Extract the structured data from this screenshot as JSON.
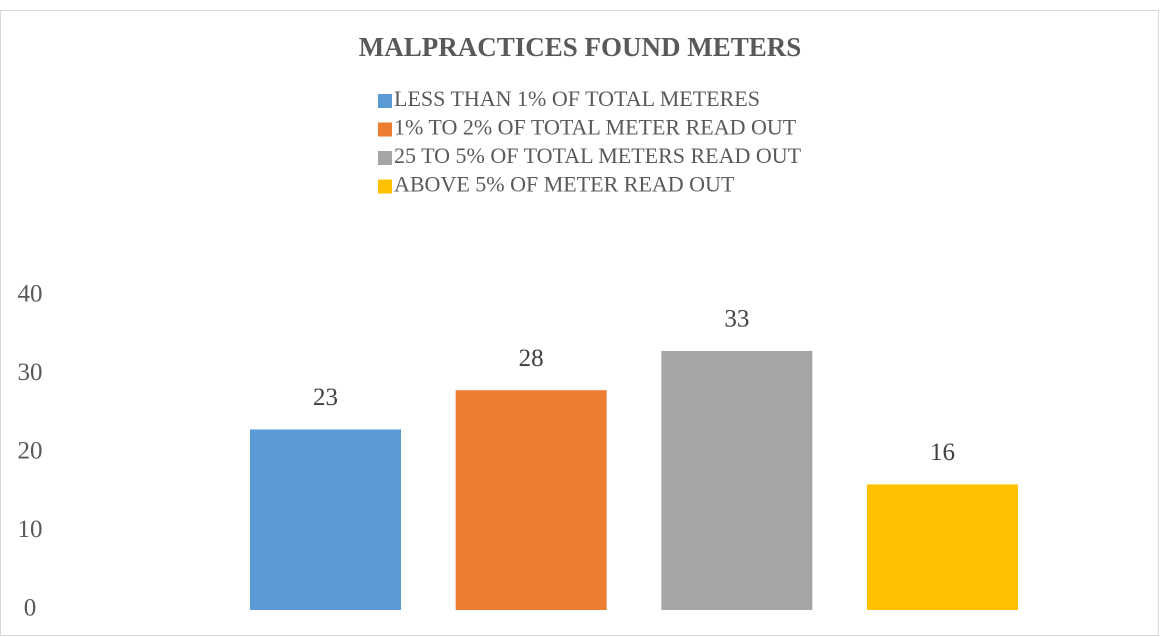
{
  "chart_data": {
    "type": "bar",
    "title": "MALPRACTICES FOUND METERS",
    "categories": [
      null
    ],
    "series": [
      {
        "name": "LESS THAN 1% OF TOTAL METERES",
        "color": "#5b9bd5",
        "values": [
          23
        ]
      },
      {
        "name": "1% TO 2% OF TOTAL METER READ OUT",
        "color": "#ed7d31",
        "values": [
          28
        ]
      },
      {
        "name": "25 TO 5% OF TOTAL METERS READ OUT",
        "color": "#a5a5a5",
        "values": [
          33
        ]
      },
      {
        "name": "ABOVE 5% OF METER READ OUT",
        "color": "#ffc000",
        "values": [
          16
        ]
      }
    ],
    "ylim": [
      0,
      40
    ],
    "yticks": [
      0,
      10,
      20,
      30,
      40
    ],
    "grid": false,
    "legend": "top"
  }
}
